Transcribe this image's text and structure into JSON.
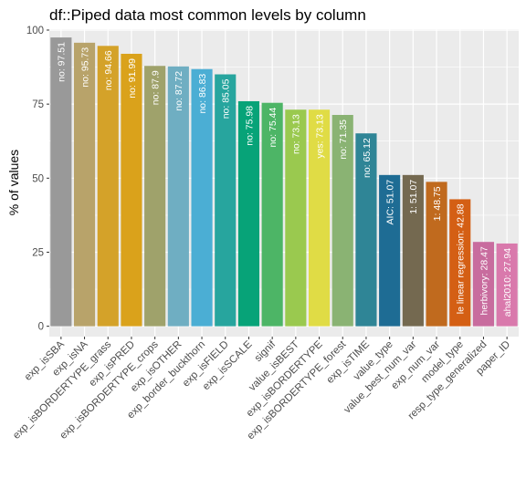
{
  "chart_data": {
    "type": "bar",
    "title": "df::Piped data most common levels by column",
    "xlabel": "",
    "ylabel": "% of values",
    "ylim": [
      0,
      100
    ],
    "yticks": [
      0,
      25,
      50,
      75,
      100
    ],
    "grid": true,
    "legend": "none",
    "categories": [
      "exp_isSBA",
      "exp_isNA",
      "exp_isBORDERTYPE_grass",
      "exp_isPRED",
      "exp_isBORDERTYPE_crops",
      "exp_isOTHER",
      "exp_border_buckthorn",
      "exp_isFIELD",
      "exp_isSCALE",
      "signif",
      "value_isBEST",
      "exp_isBORDERTYPE",
      "exp_isBORDERTYPE_forest",
      "exp_isTIME",
      "value_type",
      "value_best_num_var",
      "exp_num_var",
      "model_type",
      "resp_type_generalized",
      "paper_ID"
    ],
    "values": [
      97.51,
      95.73,
      94.66,
      91.99,
      87.9,
      87.72,
      86.83,
      85.05,
      75.98,
      75.44,
      73.13,
      73.13,
      71.35,
      65.12,
      51.07,
      51.07,
      48.75,
      42.88,
      28.47,
      27.94
    ],
    "bar_labels": [
      "no:  97.51",
      "no:  95.73",
      "no:  94.66",
      "no:  91.99",
      "no:  87.9",
      "no:  87.72",
      "no:  86.83",
      "no:  85.05",
      "no:  75.98",
      "no:  75.44",
      "no:  73.13",
      "yes:  73.13",
      "no:  71.35",
      "no:  65.12",
      "AIC:  51.07",
      "1:  51.07",
      "1:  48.75",
      "le linear regression:  42.88",
      "herbivory:  28.47",
      "ahal2010:  27.94"
    ],
    "colors": [
      "#999999",
      "#B8A36A",
      "#D4A229",
      "#DAA21B",
      "#9FA26B",
      "#6FAEC2",
      "#4BAED4",
      "#27A59E",
      "#07A378",
      "#4DB566",
      "#9AC94F",
      "#E0DC45",
      "#8AB373",
      "#2F8596",
      "#1E6C94",
      "#746950",
      "#C06A1E",
      "#D45F14",
      "#C86C9E",
      "#D979AC"
    ]
  }
}
